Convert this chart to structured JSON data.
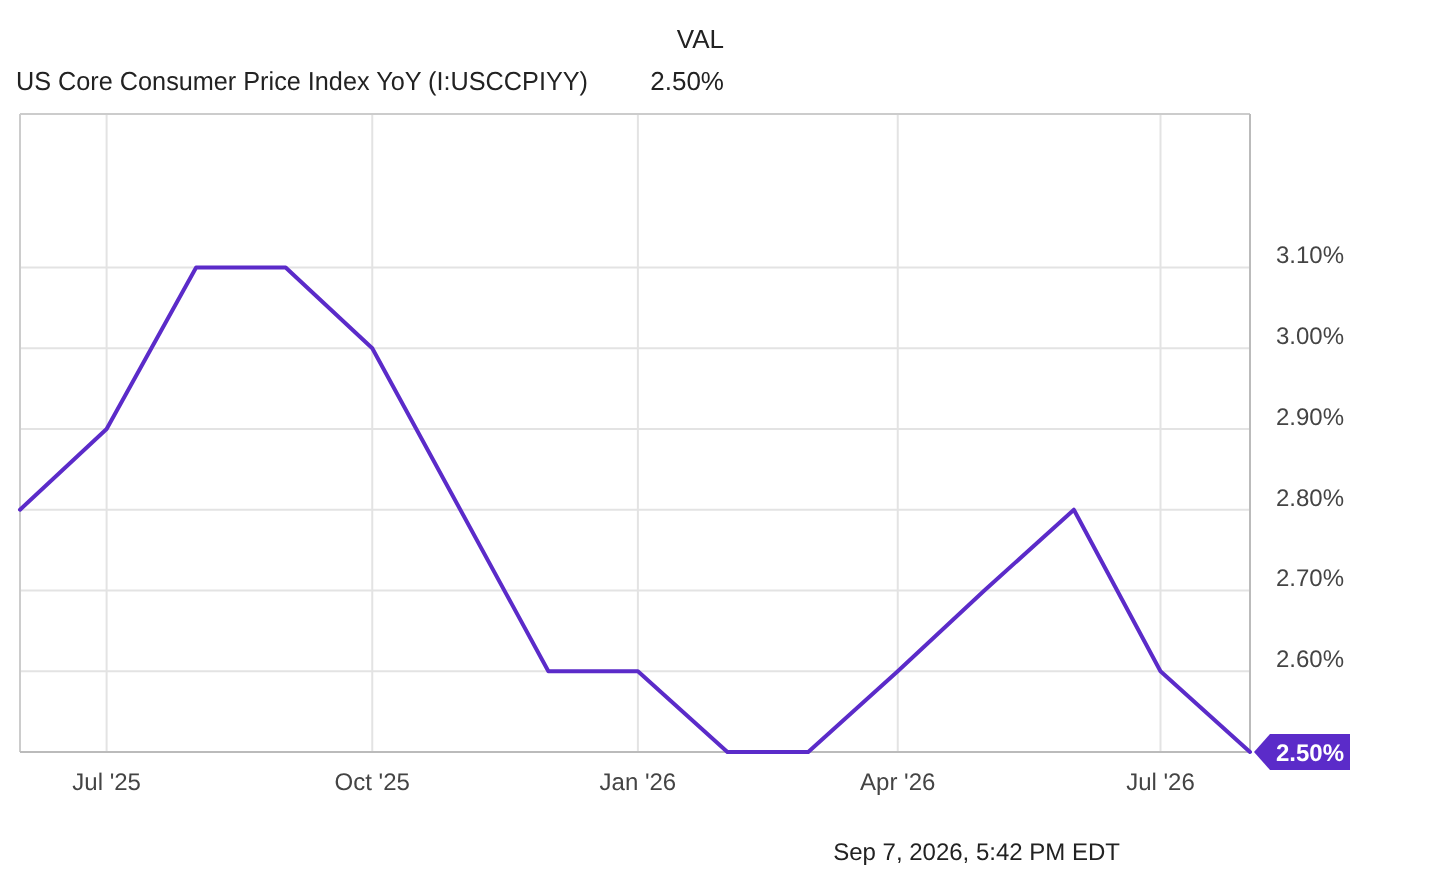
{
  "chart_data": {
    "type": "line",
    "legend_title": "VAL",
    "legend": "top left",
    "x": [
      "2025-06",
      "2025-07",
      "2025-08",
      "2025-09",
      "2025-10",
      "2025-12",
      "2026-01",
      "2026-02",
      "2026-03",
      "2026-04",
      "2026-05",
      "2026-06",
      "2026-07",
      "2026-08"
    ],
    "series": [
      {
        "name": "US Core Consumer Price Index YoY (I:USCCPIYY)",
        "color": "#5b2bc9",
        "values": [
          2.8,
          2.9,
          3.1,
          3.1,
          3.0,
          2.6,
          2.6,
          2.5,
          2.5,
          2.6,
          2.7,
          2.8,
          2.6,
          2.5
        ],
        "value_labels": [
          null,
          null,
          null,
          null,
          null,
          null,
          null,
          null,
          null,
          null,
          null,
          null,
          null,
          "2.50%"
        ]
      }
    ],
    "xlim": [
      "2025-06",
      "2026-08"
    ],
    "xticks": [
      {
        "value": "2025-07",
        "label": "Jul '25"
      },
      {
        "value": "2025-10",
        "label": "Oct '25"
      },
      {
        "value": "2026-01",
        "label": "Jan '26"
      },
      {
        "value": "2026-04",
        "label": "Apr '26"
      },
      {
        "value": "2026-07",
        "label": "Jul '26"
      }
    ],
    "ylim": [
      2.5,
      3.29
    ],
    "yticks": [
      {
        "value": 2.6,
        "label": "2.60%"
      },
      {
        "value": 2.7,
        "label": "2.70%"
      },
      {
        "value": 2.8,
        "label": "2.80%"
      },
      {
        "value": 2.9,
        "label": "2.90%"
      },
      {
        "value": 3.0,
        "label": "3.00%"
      },
      {
        "value": 3.1,
        "label": "3.10%"
      }
    ],
    "grid": true,
    "marker": "none",
    "line_style": "solid",
    "annotations": [
      "2.50%",
      "Sep 7, 2026, 5:42 PM EDT"
    ]
  }
}
